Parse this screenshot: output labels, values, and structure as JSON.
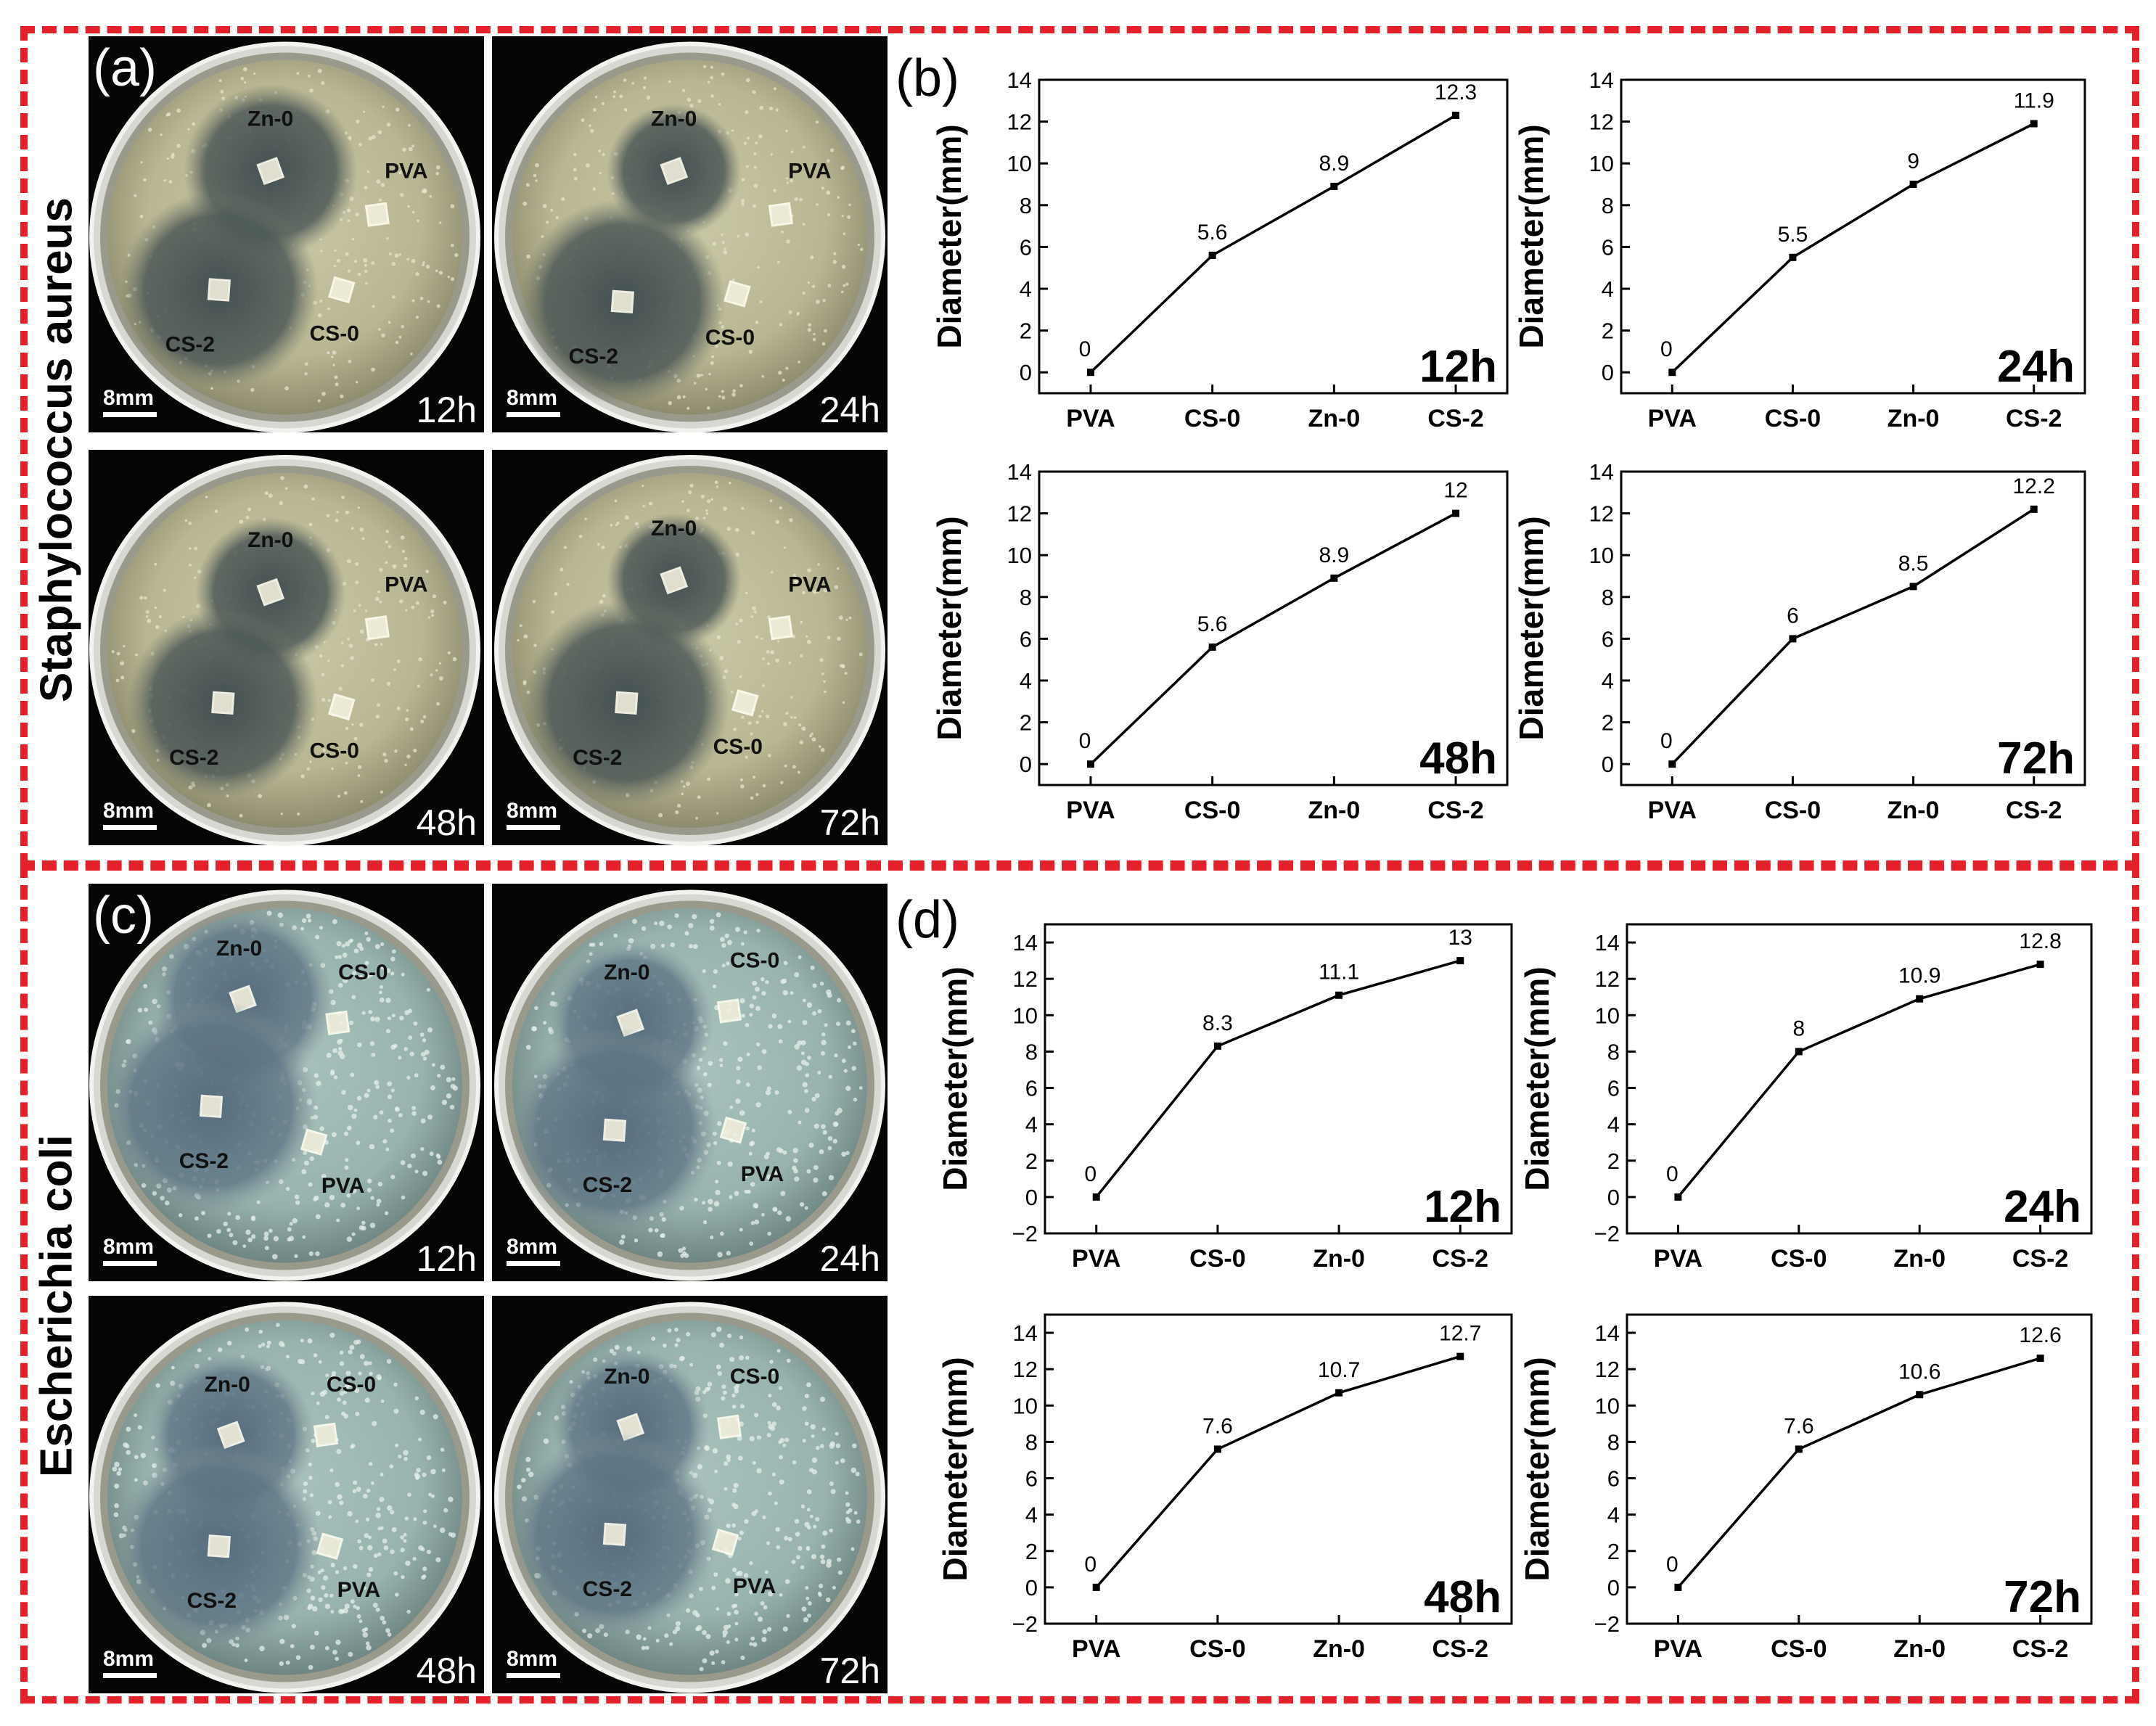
{
  "sections": [
    {
      "organism": "Staphylococcus aureus",
      "photo_panel_label": "(a)",
      "chart_panel_label": "(b)",
      "photos": [
        {
          "time": "12h",
          "scale": "8mm",
          "labels": [
            "Zn-0",
            "PVA",
            "CS-2",
            "CS-0"
          ]
        },
        {
          "time": "24h",
          "scale": "8mm",
          "labels": [
            "Zn-0",
            "PVA",
            "CS-2",
            "CS-0"
          ]
        },
        {
          "time": "48h",
          "scale": "8mm",
          "labels": [
            "Zn-0",
            "PVA",
            "CS-2",
            "CS-0"
          ]
        },
        {
          "time": "72h",
          "scale": "8mm",
          "labels": [
            "Zn-0",
            "PVA",
            "CS-2",
            "CS-0"
          ]
        }
      ]
    },
    {
      "organism": "Escherichia coli",
      "photo_panel_label": "(c)",
      "chart_panel_label": "(d)",
      "photos": [
        {
          "time": "12h",
          "scale": "8mm",
          "labels": [
            "Zn-0",
            "CS-0",
            "CS-2",
            "PVA"
          ]
        },
        {
          "time": "24h",
          "scale": "8mm",
          "labels": [
            "Zn-0",
            "CS-0",
            "CS-2",
            "PVA"
          ]
        },
        {
          "time": "48h",
          "scale": "8mm",
          "labels": [
            "Zn-0",
            "CS-0",
            "CS-2",
            "PVA"
          ]
        },
        {
          "time": "72h",
          "scale": "8mm",
          "labels": [
            "Zn-0",
            "CS-0",
            "CS-2",
            "PVA"
          ]
        }
      ]
    }
  ],
  "chart_data": [
    {
      "type": "line",
      "panel": "(b)",
      "inset_label": "12h",
      "ylabel": "Diameter(mm)",
      "categories": [
        "PVA",
        "CS-0",
        "Zn-0",
        "CS-2"
      ],
      "values": [
        0,
        5.6,
        8.9,
        12.3
      ],
      "data_labels": [
        "0",
        "5.6",
        "8.9",
        "12.3"
      ],
      "ylim": [
        -1,
        14
      ],
      "yticks": [
        "0",
        "2",
        "4",
        "6",
        "8",
        "10",
        "12",
        "14"
      ]
    },
    {
      "type": "line",
      "panel": "(b)",
      "inset_label": "24h",
      "ylabel": "Diameter(mm)",
      "categories": [
        "PVA",
        "CS-0",
        "Zn-0",
        "CS-2"
      ],
      "values": [
        0,
        5.5,
        9,
        11.9
      ],
      "data_labels": [
        "0",
        "5.5",
        "9",
        "11.9"
      ],
      "ylim": [
        -1,
        14
      ],
      "yticks": [
        "0",
        "2",
        "4",
        "6",
        "8",
        "10",
        "12",
        "14"
      ]
    },
    {
      "type": "line",
      "panel": "(b)",
      "inset_label": "48h",
      "ylabel": "Diameter(mm)",
      "categories": [
        "PVA",
        "CS-0",
        "Zn-0",
        "CS-2"
      ],
      "values": [
        0,
        5.6,
        8.9,
        12
      ],
      "data_labels": [
        "0",
        "5.6",
        "8.9",
        "12"
      ],
      "ylim": [
        -1,
        14
      ],
      "yticks": [
        "0",
        "2",
        "4",
        "6",
        "8",
        "10",
        "12",
        "14"
      ]
    },
    {
      "type": "line",
      "panel": "(b)",
      "inset_label": "72h",
      "ylabel": "Diameter(mm)",
      "categories": [
        "PVA",
        "CS-0",
        "Zn-0",
        "CS-2"
      ],
      "values": [
        0,
        6,
        8.5,
        12.2
      ],
      "data_labels": [
        "0",
        "6",
        "8.5",
        "12.2"
      ],
      "ylim": [
        -1,
        14
      ],
      "yticks": [
        "0",
        "2",
        "4",
        "6",
        "8",
        "10",
        "12",
        "14"
      ]
    },
    {
      "type": "line",
      "panel": "(d)",
      "inset_label": "12h",
      "ylabel": "Diameter(mm)",
      "categories": [
        "PVA",
        "CS-0",
        "Zn-0",
        "CS-2"
      ],
      "values": [
        0,
        8.3,
        11.1,
        13
      ],
      "data_labels": [
        "0",
        "8.3",
        "11.1",
        "13"
      ],
      "ylim": [
        -2,
        15
      ],
      "yticks": [
        "−2",
        "0",
        "2",
        "4",
        "6",
        "8",
        "10",
        "12",
        "14"
      ]
    },
    {
      "type": "line",
      "panel": "(d)",
      "inset_label": "24h",
      "ylabel": "Diameter(mm)",
      "categories": [
        "PVA",
        "CS-0",
        "Zn-0",
        "CS-2"
      ],
      "values": [
        0,
        8,
        10.9,
        12.8
      ],
      "data_labels": [
        "0",
        "8",
        "10.9",
        "12.8"
      ],
      "ylim": [
        -2,
        15
      ],
      "yticks": [
        "−2",
        "0",
        "2",
        "4",
        "6",
        "8",
        "10",
        "12",
        "14"
      ]
    },
    {
      "type": "line",
      "panel": "(d)",
      "inset_label": "48h",
      "ylabel": "Diameter(mm)",
      "categories": [
        "PVA",
        "CS-0",
        "Zn-0",
        "CS-2"
      ],
      "values": [
        0,
        7.6,
        10.7,
        12.7
      ],
      "data_labels": [
        "0",
        "7.6",
        "10.7",
        "12.7"
      ],
      "ylim": [
        -2,
        15
      ],
      "yticks": [
        "−2",
        "0",
        "2",
        "4",
        "6",
        "8",
        "10",
        "12",
        "14"
      ]
    },
    {
      "type": "line",
      "panel": "(d)",
      "inset_label": "72h",
      "ylabel": "Diameter(mm)",
      "categories": [
        "PVA",
        "CS-0",
        "Zn-0",
        "CS-2"
      ],
      "values": [
        0,
        7.6,
        10.6,
        12.6
      ],
      "data_labels": [
        "0",
        "7.6",
        "10.6",
        "12.6"
      ],
      "ylim": [
        -2,
        15
      ],
      "yticks": [
        "−2",
        "0",
        "2",
        "4",
        "6",
        "8",
        "10",
        "12",
        "14"
      ]
    }
  ]
}
